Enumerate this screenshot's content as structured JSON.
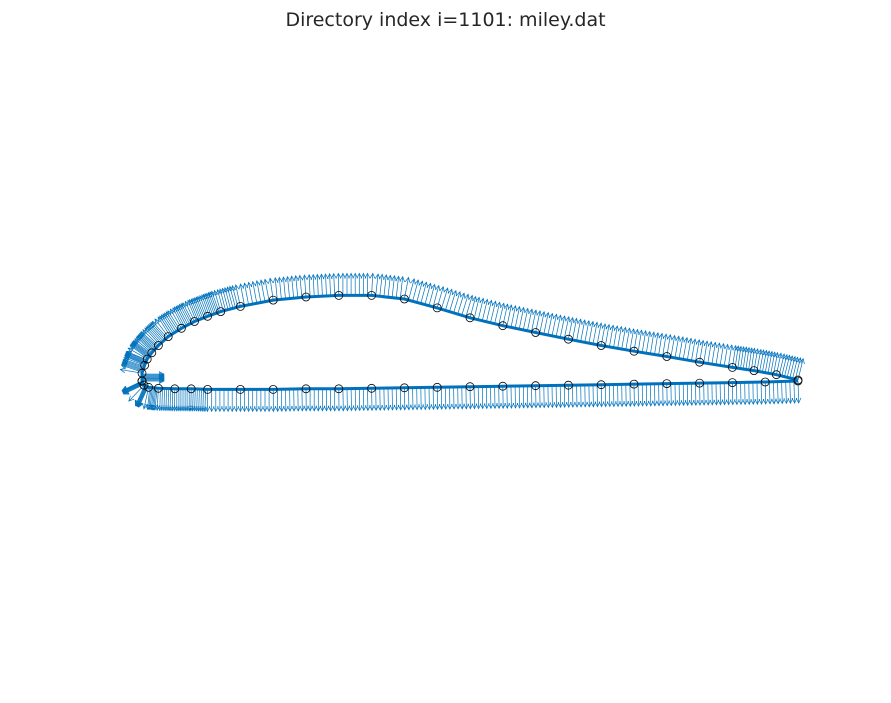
{
  "chart_data": {
    "type": "scatter",
    "title": "Directory index i=1101: miley.dat",
    "xlabel": "",
    "ylabel": "",
    "axis_visible": false,
    "grid": false,
    "aspect_equal": true,
    "colors": {
      "surface": "#0072BD",
      "arrows": "#0072BD",
      "markers": "#000000"
    },
    "upper_surface": [
      [
        1.0,
        0.002
      ],
      [
        0.967,
        0.012
      ],
      [
        0.933,
        0.02
      ],
      [
        0.9,
        0.026
      ],
      [
        0.85,
        0.036
      ],
      [
        0.8,
        0.047
      ],
      [
        0.75,
        0.057
      ],
      [
        0.7,
        0.068
      ],
      [
        0.65,
        0.08
      ],
      [
        0.6,
        0.093
      ],
      [
        0.55,
        0.106
      ],
      [
        0.5,
        0.121
      ],
      [
        0.45,
        0.14
      ],
      [
        0.4,
        0.157
      ],
      [
        0.35,
        0.164
      ],
      [
        0.3,
        0.164
      ],
      [
        0.25,
        0.161
      ],
      [
        0.2,
        0.155
      ],
      [
        0.15,
        0.143
      ],
      [
        0.12,
        0.133
      ],
      [
        0.1,
        0.124
      ],
      [
        0.08,
        0.114
      ],
      [
        0.06,
        0.101
      ],
      [
        0.04,
        0.085
      ],
      [
        0.025,
        0.068
      ],
      [
        0.015,
        0.054
      ],
      [
        0.008,
        0.042
      ],
      [
        0.004,
        0.03
      ],
      [
        0.0,
        0.015
      ],
      [
        0.0,
        0.0
      ]
    ],
    "lower_surface": [
      [
        0.0,
        0.0
      ],
      [
        0.003,
        -0.008
      ],
      [
        0.01,
        -0.012
      ],
      [
        0.025,
        -0.014
      ],
      [
        0.05,
        -0.015
      ],
      [
        0.075,
        -0.015
      ],
      [
        0.1,
        -0.016
      ],
      [
        0.15,
        -0.016
      ],
      [
        0.2,
        -0.016
      ],
      [
        0.25,
        -0.015
      ],
      [
        0.3,
        -0.015
      ],
      [
        0.35,
        -0.014
      ],
      [
        0.4,
        -0.013
      ],
      [
        0.45,
        -0.012
      ],
      [
        0.5,
        -0.011
      ],
      [
        0.55,
        -0.01
      ],
      [
        0.6,
        -0.009
      ],
      [
        0.65,
        -0.008
      ],
      [
        0.7,
        -0.007
      ],
      [
        0.75,
        -0.006
      ],
      [
        0.8,
        -0.005
      ],
      [
        0.85,
        -0.004
      ],
      [
        0.9,
        -0.003
      ],
      [
        0.95,
        -0.002
      ],
      [
        1.0,
        0.0
      ]
    ],
    "point_markers": "open circles at each coordinate",
    "normal_vectors": "arrows along both surfaces pointing outward",
    "xlim": [
      -0.05,
      1.05
    ],
    "ylim": [
      -0.45,
      0.5
    ]
  }
}
